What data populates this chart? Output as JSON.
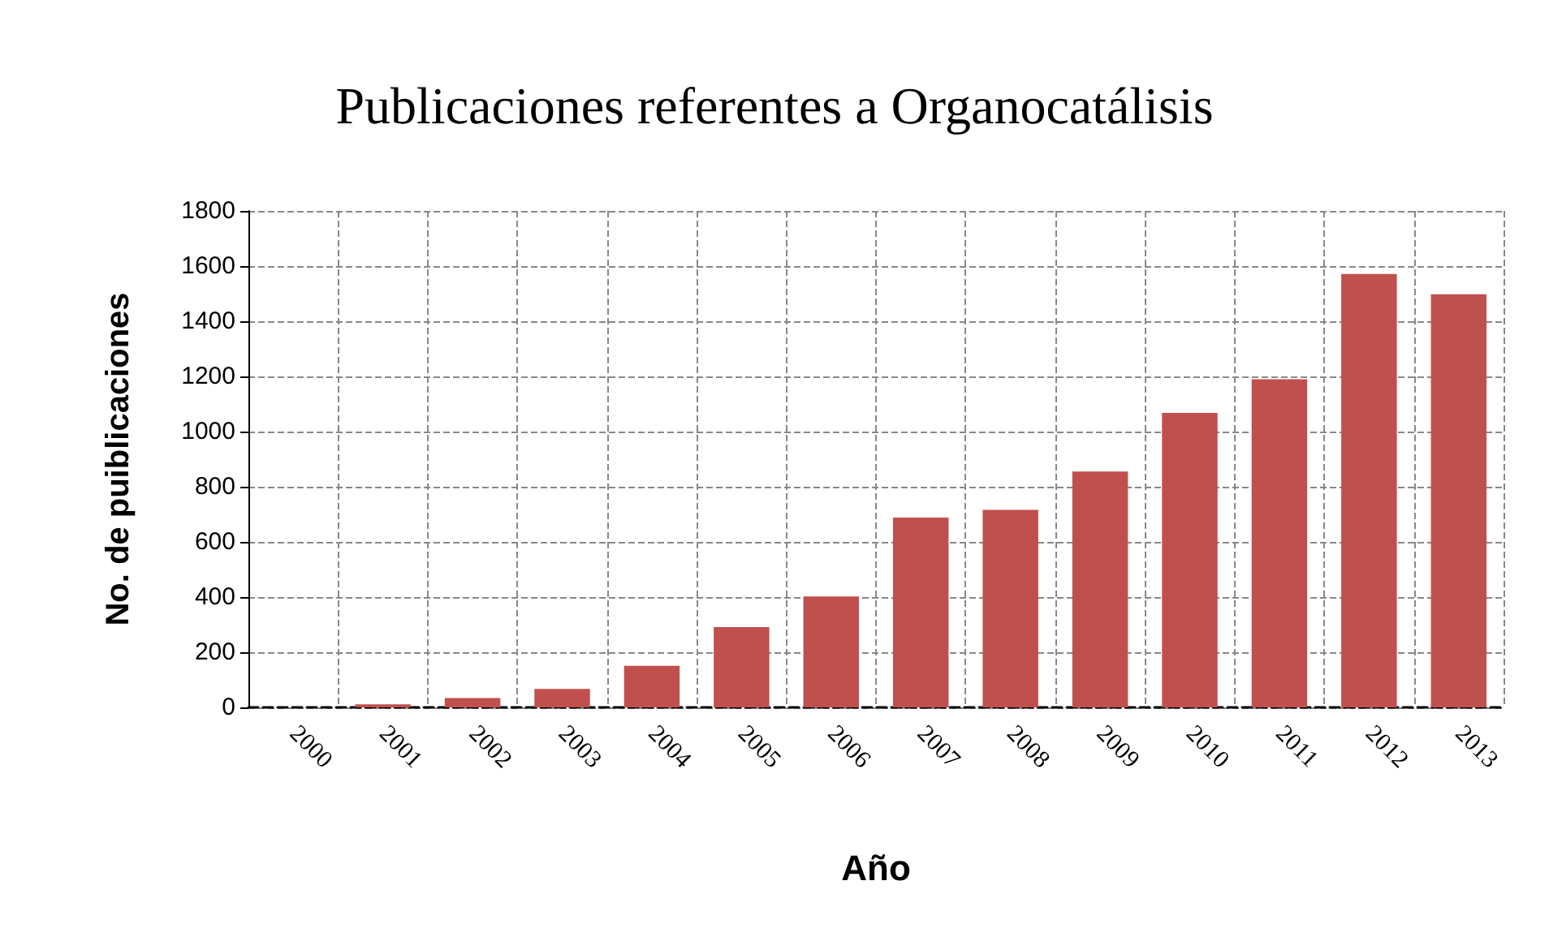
{
  "chart_data": {
    "type": "bar",
    "title": "Publicaciones referentes a Organocatálisis",
    "xlabel": "Año",
    "ylabel": "No. de puiblicaciones",
    "categories": [
      "2000",
      "2001",
      "2002",
      "2003",
      "2004",
      "2005",
      "2006",
      "2007",
      "2008",
      "2009",
      "2010",
      "2011",
      "2012",
      "2013"
    ],
    "values": [
      0,
      11,
      34,
      67,
      151,
      291,
      402,
      688,
      716,
      855,
      1068,
      1190,
      1571,
      1498
    ],
    "color": "#c0504d",
    "ylim": [
      0,
      1800
    ],
    "yticks": [
      0,
      200,
      400,
      600,
      800,
      1000,
      1200,
      1400,
      1600,
      1800
    ],
    "grid": true
  }
}
